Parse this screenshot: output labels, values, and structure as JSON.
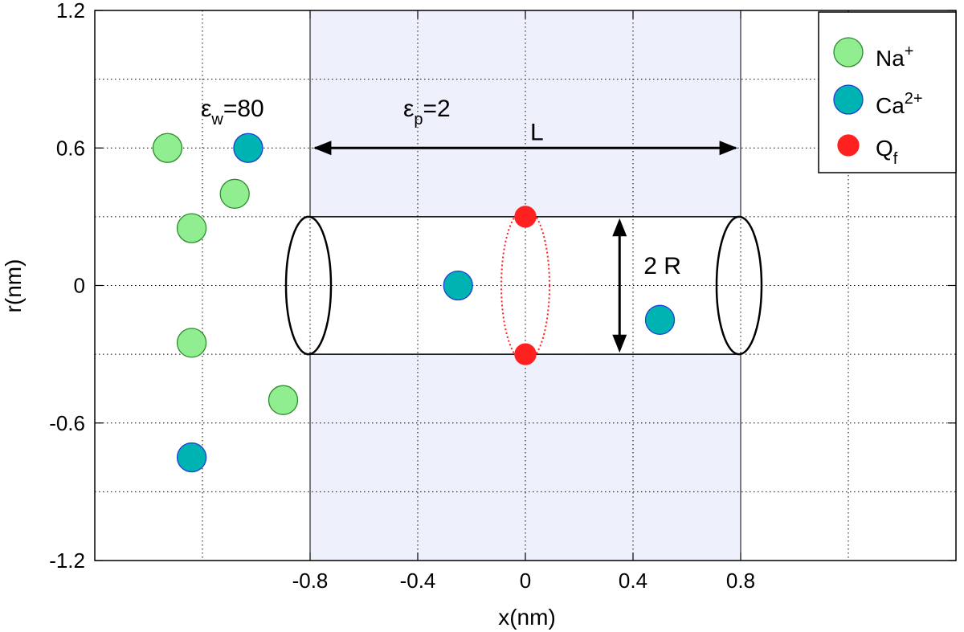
{
  "chart_data": {
    "type": "scatter",
    "xlabel": "x(nm)",
    "ylabel": "r(nm)",
    "xlim": [
      -1.6,
      1.6
    ],
    "ylim": [
      -1.2,
      1.2
    ],
    "x_ticks": [
      "-0.8",
      "-0.4",
      "0",
      "0.4",
      "0.8"
    ],
    "y_ticks": [
      "-1.2",
      "-0.6",
      "0",
      "0.6",
      "1.2"
    ],
    "grid": true,
    "legend_position": "top-right",
    "series": [
      {
        "name": "Na+",
        "label_base": "Na",
        "label_sup": "+",
        "color": "#90ee90",
        "edge": "#2e8b2e",
        "points": [
          {
            "x": -1.33,
            "y": 0.6
          },
          {
            "x": -1.08,
            "y": 0.4
          },
          {
            "x": -1.24,
            "y": 0.25
          },
          {
            "x": -1.24,
            "y": -0.25
          },
          {
            "x": -0.9,
            "y": -0.5
          }
        ]
      },
      {
        "name": "Ca2+",
        "label_base": "Ca",
        "label_sup": "2+",
        "color": "#00b3b3",
        "edge": "#1f3fd6",
        "points": [
          {
            "x": -1.03,
            "y": 0.6
          },
          {
            "x": -1.24,
            "y": -0.75
          },
          {
            "x": -0.25,
            "y": 0.0
          },
          {
            "x": 0.5,
            "y": -0.15
          }
        ]
      },
      {
        "name": "Qf",
        "label_base": "Q",
        "label_sub": "f",
        "color": "#ff2020",
        "edge": "#ff2020",
        "points": [
          {
            "x": 0.0,
            "y": 0.3
          },
          {
            "x": 0.0,
            "y": -0.3
          }
        ]
      }
    ],
    "membrane": {
      "x_range": [
        -0.8,
        0.8
      ],
      "pore_radius": 0.3,
      "color": "#eef1fb"
    },
    "annotations": {
      "eps_w_base": "ε",
      "eps_w_sub": "w",
      "eps_w_rest": "=80",
      "eps_p_base": "ε",
      "eps_p_sub": "p",
      "eps_p_rest": "=2",
      "length_label": "L",
      "diameter_label": "2 R"
    }
  }
}
